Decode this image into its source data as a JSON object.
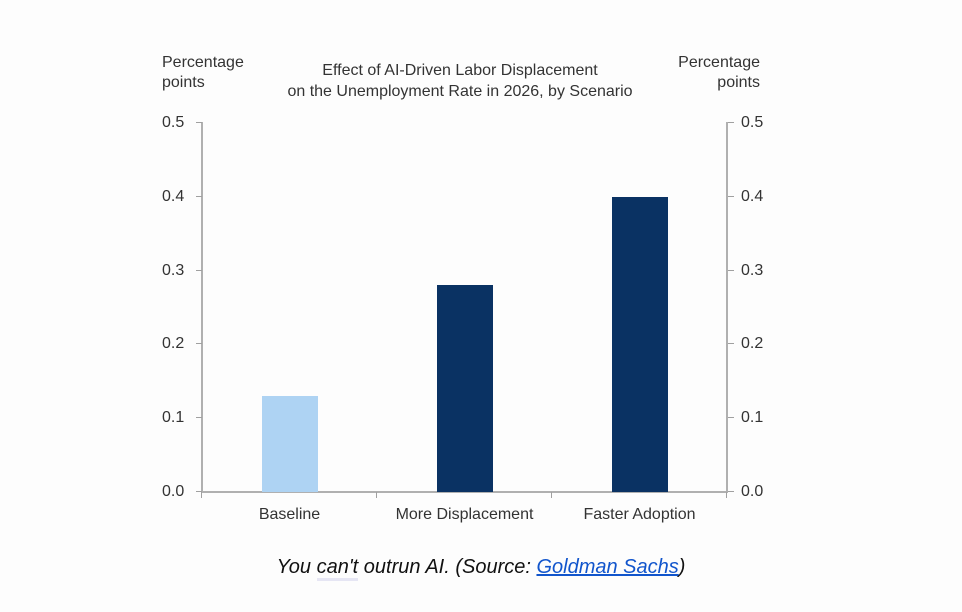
{
  "chart_data": {
    "type": "bar",
    "title": "Effect of AI-Driven Labor Displacement on the Unemployment Rate in 2026, by Scenario",
    "title_lines": [
      "Effect of AI-Driven  Labor Displacement",
      "on the Unemployment Rate in 2026, by Scenario"
    ],
    "categories": [
      "Baseline",
      "More Displacement",
      "Faster Adoption"
    ],
    "values": [
      0.13,
      0.28,
      0.4
    ],
    "bar_colors": [
      "#aed3f3",
      "#0a3263",
      "#0a3263"
    ],
    "xlabel": "",
    "ylabel": "Percentage points",
    "ylabel_right": "Percentage points",
    "ylim": [
      0.0,
      0.5
    ],
    "yticks": [
      "0.0",
      "0.1",
      "0.2",
      "0.3",
      "0.4",
      "0.5"
    ],
    "grid": false,
    "legend": null,
    "dual_axis": true
  },
  "labels": {
    "ylabel_left_line1": "Percentage",
    "ylabel_left_line2": "points",
    "ylabel_right_line1": "Percentage",
    "ylabel_right_line2": "points"
  },
  "caption": {
    "text_before": "You ",
    "spell_word": "can't",
    "text_middle": " outrun AI. (Source: ",
    "link_text": "Goldman Sachs",
    "text_after": ")",
    "link_color": "#1155cc"
  }
}
